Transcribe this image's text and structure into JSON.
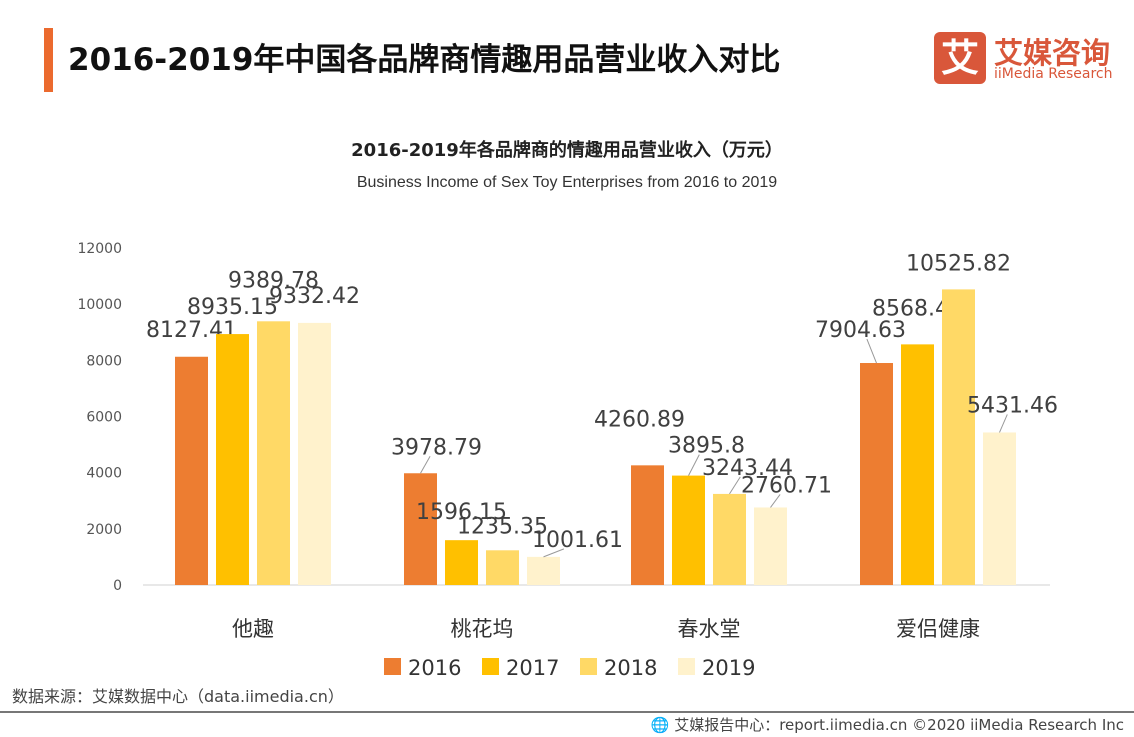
{
  "header": {
    "title": "2016-2019年中国各品牌商情趣用品营业收入对比"
  },
  "logo": {
    "mark": "艾",
    "cn": "艾媒咨询",
    "en": "iiMedia Research"
  },
  "chart_data": {
    "type": "bar",
    "title": "2016-2019年各品牌商的情趣用品营业收入（万元）",
    "subtitle": "Business Income of Sex Toy Enterprises from 2016 to 2019",
    "categories": [
      "他趣",
      "桃花坞",
      "春水堂",
      "爱侣健康"
    ],
    "ylim": [
      0,
      12000
    ],
    "yticks": [
      0,
      2000,
      4000,
      6000,
      8000,
      10000,
      12000
    ],
    "grid": false,
    "legend_position": "bottom",
    "series": [
      {
        "name": "2016",
        "color": "#ED7D31",
        "values": [
          8127.41,
          3978.79,
          4260.89,
          7904.63
        ]
      },
      {
        "name": "2017",
        "color": "#FFC000",
        "values": [
          8935.15,
          1596.15,
          3895.8,
          8568.41
        ]
      },
      {
        "name": "2018",
        "color": "#FFD966",
        "values": [
          9389.78,
          1235.35,
          3243.44,
          10525.82
        ]
      },
      {
        "name": "2019",
        "color": "#FFF2CC",
        "values": [
          9332.42,
          1001.61,
          2760.71,
          5431.46
        ]
      }
    ]
  },
  "source": "数据来源：艾媒数据中心（data.iimedia.cn）",
  "footer": "艾媒报告中心：report.iimedia.cn   ©2020  iiMedia Research  Inc",
  "footer_icon": "globe-cursor-icon"
}
